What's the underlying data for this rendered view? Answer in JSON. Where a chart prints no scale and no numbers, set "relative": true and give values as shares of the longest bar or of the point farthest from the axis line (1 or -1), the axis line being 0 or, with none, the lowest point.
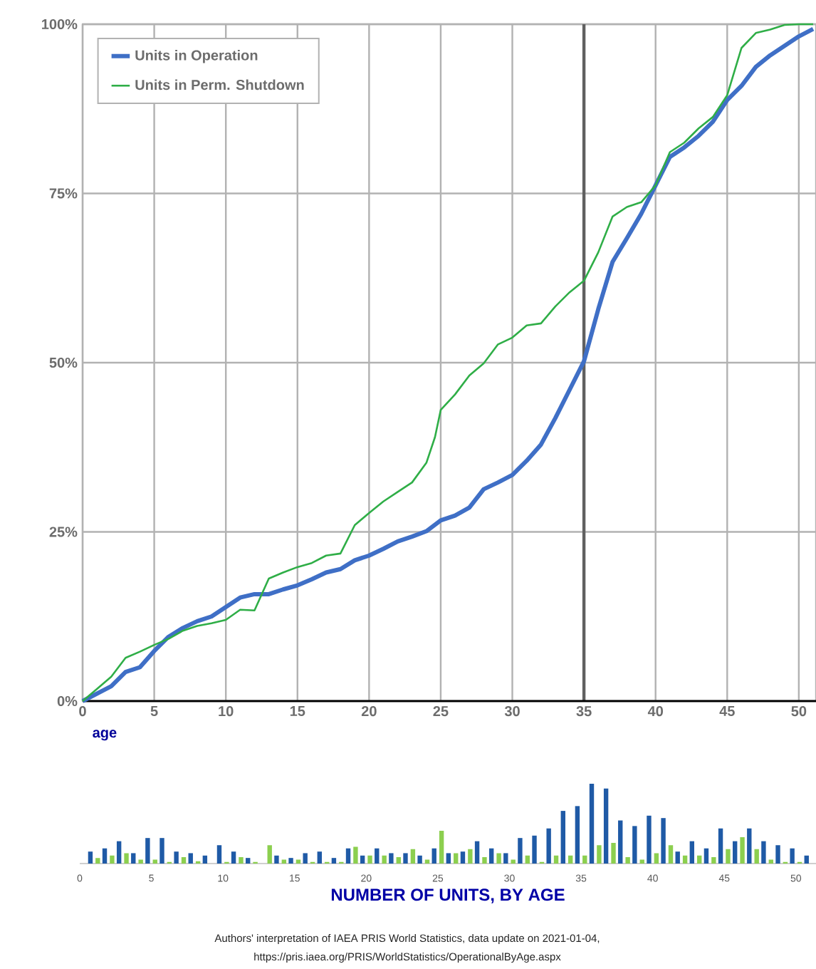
{
  "chart_data": [
    {
      "type": "line",
      "xlabel": "age",
      "xlim": [
        0,
        51.2
      ],
      "ylim": [
        0,
        100
      ],
      "xticks": [
        0,
        5,
        10,
        15,
        20,
        25,
        30,
        35,
        40,
        45,
        50
      ],
      "yticks": [
        {
          "value": 0,
          "label": "0%"
        },
        {
          "value": 25,
          "label": "25%"
        },
        {
          "value": 50,
          "label": "50%"
        },
        {
          "value": 75,
          "label": "75%"
        },
        {
          "value": 100,
          "label": "100%"
        }
      ],
      "grid": true,
      "legend": "top left",
      "marker": "none",
      "line_style": "solid",
      "ref_lines": [
        {
          "axis": "x",
          "value": 35,
          "color": "#606060"
        }
      ],
      "series": [
        {
          "name": "Units in Operation",
          "color": "#3f6fc6",
          "x": [
            0,
            2,
            3,
            4,
            5,
            6,
            7,
            8,
            9,
            10,
            11,
            12,
            13,
            14,
            15,
            16,
            17,
            18,
            19,
            20,
            21,
            22,
            23,
            24,
            25,
            26,
            27,
            28,
            29,
            30,
            31,
            32,
            33,
            34,
            35,
            36,
            37,
            38,
            39,
            40,
            41,
            42,
            43,
            44,
            45,
            46,
            47,
            48,
            49,
            50,
            51
          ],
          "values": [
            0,
            2.2,
            4.3,
            5,
            7.4,
            9.5,
            10.8,
            11.8,
            12.5,
            13.9,
            15.3,
            15.8,
            15.8,
            16.5,
            17.1,
            18,
            19,
            19.5,
            20.8,
            21.5,
            22.5,
            23.6,
            24.3,
            25.1,
            26.7,
            27.4,
            28.6,
            31.3,
            32.3,
            33.4,
            35.5,
            37.9,
            41.8,
            46,
            50.2,
            57.9,
            64.9,
            68.4,
            72,
            76.2,
            80.4,
            81.8,
            83.5,
            85.6,
            88.8,
            90.9,
            93.7,
            95.4,
            96.8,
            98.2,
            99.3
          ]
        },
        {
          "name": "Units in Perm. Shutdown",
          "color": "#2fae47",
          "x": [
            0,
            1,
            2,
            3,
            4,
            5,
            6,
            7,
            8,
            9,
            10,
            11,
            12,
            13,
            14,
            15,
            16,
            17,
            18,
            19,
            20,
            21,
            22,
            23,
            24,
            24.6,
            25,
            26,
            27,
            28,
            29,
            30,
            31,
            32,
            33,
            34,
            35,
            36,
            37,
            38,
            39,
            40,
            41,
            42,
            43,
            44,
            45,
            46,
            47,
            48,
            49,
            50,
            51
          ],
          "values": [
            0,
            1.8,
            3.6,
            6.4,
            7.3,
            8.3,
            9.2,
            10.4,
            11.1,
            11.5,
            12,
            13.5,
            13.4,
            18.1,
            19,
            19.8,
            20.4,
            21.5,
            21.8,
            26,
            27.8,
            29.5,
            30.9,
            32.3,
            35.2,
            39,
            43,
            45.3,
            48.1,
            49.9,
            52.7,
            53.7,
            55.5,
            55.8,
            58.3,
            60.4,
            62.1,
            66.3,
            71.6,
            73,
            73.7,
            76.2,
            81.1,
            82.5,
            84.6,
            86.3,
            89.5,
            96.5,
            98.7,
            99.2,
            99.9,
            100,
            100
          ]
        }
      ]
    },
    {
      "type": "bar",
      "relative": true,
      "xlabel": "NUMBER OF UNITS, BY AGE",
      "xlim": [
        0,
        51.4
      ],
      "xticks": [
        0,
        5,
        10,
        15,
        20,
        25,
        30,
        35,
        40,
        45,
        50
      ],
      "x": [
        1,
        2,
        3,
        4,
        5,
        6,
        7,
        8,
        9,
        10,
        11,
        12,
        13,
        14,
        15,
        16,
        17,
        18,
        19,
        20,
        21,
        22,
        23,
        24,
        25,
        26,
        27,
        28,
        29,
        30,
        31,
        32,
        33,
        34,
        35,
        36,
        37,
        38,
        39,
        40,
        41,
        42,
        43,
        44,
        45,
        46,
        47,
        48,
        49,
        50,
        51
      ],
      "annotations": [
        "Authors' interpretation of IAEA PRIS World Statistics, data update on 2021-01-04,",
        "https://pris.iaea.org/PRIS/WorldStatistics/OperationalByAge.aspx"
      ],
      "series": [
        {
          "color": "#1f5aa6",
          "values": [
            0.15,
            0.19,
            0.28,
            0.13,
            0.32,
            0.32,
            0.15,
            0.13,
            0.1,
            0.23,
            0.15,
            0.07,
            0,
            0.1,
            0.07,
            0.13,
            0.15,
            0.07,
            0.19,
            0.1,
            0.19,
            0.13,
            0.13,
            0.1,
            0.19,
            0.13,
            0.15,
            0.28,
            0.19,
            0.13,
            0.32,
            0.35,
            0.44,
            0.66,
            0.72,
            1,
            0.94,
            0.54,
            0.47,
            0.6,
            0.57,
            0.15,
            0.28,
            0.19,
            0.44,
            0.28,
            0.44,
            0.28,
            0.23,
            0.19,
            0.1
          ]
        },
        {
          "color": "#8ccf4f",
          "values": [
            0.07,
            0.1,
            0.13,
            0.05,
            0.05,
            0.02,
            0.08,
            0.03,
            0,
            0.02,
            0.08,
            0.02,
            0.23,
            0.05,
            0.05,
            0.02,
            0.02,
            0.02,
            0.21,
            0.1,
            0.1,
            0.08,
            0.18,
            0.05,
            0.41,
            0.13,
            0.18,
            0.08,
            0.13,
            0.05,
            0.1,
            0.02,
            0.1,
            0.1,
            0.1,
            0.23,
            0.26,
            0.08,
            0.05,
            0.13,
            0.23,
            0.1,
            0.1,
            0.08,
            0.18,
            0.33,
            0.18,
            0.05,
            0.02,
            0.02,
            0
          ]
        }
      ]
    }
  ]
}
